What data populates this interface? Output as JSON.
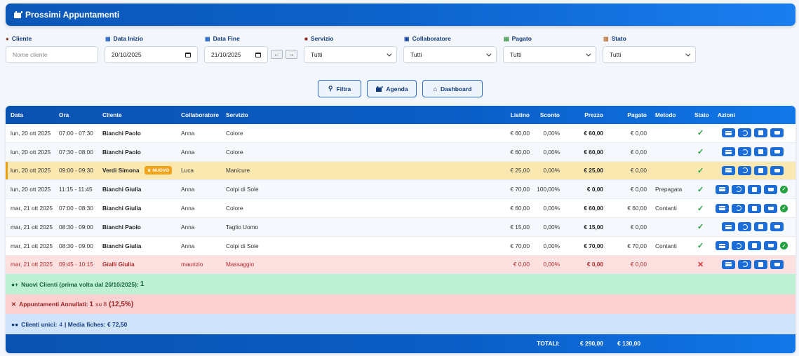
{
  "header": {
    "title": "Prossimi Appuntamenti"
  },
  "filters": {
    "cliente": {
      "label": "Cliente",
      "placeholder": "Nome cliente"
    },
    "data_inizio": {
      "label": "Data Inizio",
      "value": "20/10/2025"
    },
    "data_fine": {
      "label": "Data Fine",
      "value": "21/10/2025"
    },
    "prev": "←",
    "next": "→",
    "servizio": {
      "label": "Servizio",
      "value": "Tutti"
    },
    "collaboratore": {
      "label": "Collaboratore",
      "value": "Tutti"
    },
    "pagato": {
      "label": "Pagato",
      "value": "Tutti"
    },
    "stato": {
      "label": "Stato",
      "value": "Tutti"
    }
  },
  "buttons": {
    "filtra": "Filtra",
    "agenda": "Agenda",
    "dashboard": "Dashboard"
  },
  "table": {
    "headers": {
      "data": "Data",
      "ora": "Ora",
      "cliente": "Cliente",
      "collaboratore": "Collaboratore",
      "servizio": "Servizio",
      "listino": "Listino",
      "sconto": "Sconto",
      "prezzo": "Prezzo",
      "pagato": "Pagato",
      "metodo": "Metodo",
      "stato": "Stato",
      "azioni": "Azioni"
    },
    "rows": [
      {
        "data": "lun, 20 ott 2025",
        "ora": "07:00 - 07:30",
        "cliente": "Bianchi Paolo",
        "badge": "",
        "collaboratore": "Anna",
        "servizio": "Colore",
        "listino": "€ 60,00",
        "sconto": "0,00%",
        "prezzo": "€ 60,00",
        "pagato": "€ 0,00",
        "metodo": ""
      },
      {
        "data": "lun, 20 ott 2025",
        "ora": "07:30 - 08:00",
        "cliente": "Bianchi Paolo",
        "badge": "",
        "collaboratore": "Anna",
        "servizio": "Colore",
        "listino": "€ 60,00",
        "sconto": "0,00%",
        "prezzo": "€ 60,00",
        "pagato": "€ 0,00",
        "metodo": ""
      },
      {
        "data": "lun, 20 ott 2025",
        "ora": "09:00 - 09:30",
        "cliente": "Verdi Simona",
        "badge": "NUOVO",
        "collaboratore": "Luca",
        "servizio": "Manicure",
        "listino": "€ 25,00",
        "sconto": "0,00%",
        "prezzo": "€ 25,00",
        "pagato": "€ 0,00",
        "metodo": ""
      },
      {
        "data": "lun, 20 ott 2025",
        "ora": "11:15 - 11:45",
        "cliente": "Bianchi Giulia",
        "badge": "",
        "collaboratore": "Anna",
        "servizio": "Colpi di Sole",
        "listino": "€ 70,00",
        "sconto": "100,00%",
        "prezzo": "€ 0,00",
        "pagato": "€ 0,00",
        "metodo": "Prepagata"
      },
      {
        "data": "mar, 21 ott 2025",
        "ora": "07:00 - 08:30",
        "cliente": "Bianchi Giulia",
        "badge": "",
        "collaboratore": "Anna",
        "servizio": "Colore",
        "listino": "€ 60,00",
        "sconto": "0,00%",
        "prezzo": "€ 60,00",
        "pagato": "€ 60,00",
        "metodo": "Contanti"
      },
      {
        "data": "mar, 21 ott 2025",
        "ora": "08:30 - 09:00",
        "cliente": "Bianchi Paolo",
        "badge": "",
        "collaboratore": "Anna",
        "servizio": "Taglio Uomo",
        "listino": "€ 15,00",
        "sconto": "0,00%",
        "prezzo": "€ 15,00",
        "pagato": "€ 0,00",
        "metodo": ""
      },
      {
        "data": "mar, 21 ott 2025",
        "ora": "08:30 - 09:00",
        "cliente": "Bianchi Giulia",
        "badge": "",
        "collaboratore": "Anna",
        "servizio": "Colpi di Sole",
        "listino": "€ 70,00",
        "sconto": "0,00%",
        "prezzo": "€ 70,00",
        "pagato": "€ 70,00",
        "metodo": "Contanti"
      },
      {
        "data": "mar, 21 ott 2025",
        "ora": "09:45 - 10:15",
        "cliente": "Gialli Giulia",
        "badge": "",
        "collaboratore": "maurizio",
        "servizio": "Massaggio",
        "listino": "€ 0,00",
        "sconto": "0,00%",
        "prezzo": "€ 0,00",
        "pagato": "€ 0,00",
        "metodo": ""
      }
    ]
  },
  "summary": {
    "nuovi_label": "Nuovi Clienti (prima volta dal 20/10/2025):",
    "nuovi_value": "1",
    "annullati_label": "Appuntamenti Annullati:",
    "annullati_value": "1",
    "annullati_su": "su 8",
    "annullati_pct": "(12,5%)",
    "unici_label": "Clienti unici:",
    "unici_value": "4",
    "media_label": "| Media fiches: € 72,50"
  },
  "totals": {
    "label": "TOTALI:",
    "prezzo": "€ 290,00",
    "pagato": "€ 130,00"
  }
}
